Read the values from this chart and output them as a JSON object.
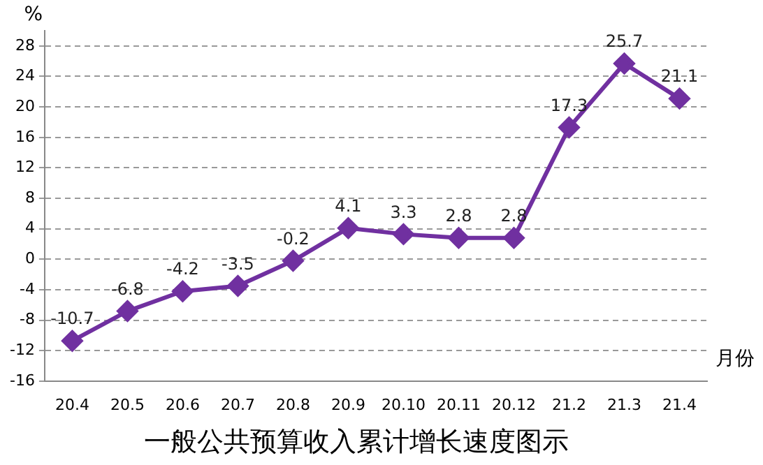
{
  "chart_data": {
    "type": "line",
    "title": "一般公共预算收入累计增长速度图示",
    "xlabel": "月份",
    "ylabel": "%",
    "categories": [
      "20.4",
      "20.5",
      "20.6",
      "20.7",
      "20.8",
      "20.9",
      "20.10",
      "20.11",
      "20.12",
      "21.2",
      "21.3",
      "21.4"
    ],
    "series": [
      {
        "color": "#7030a0",
        "values": [
          -10.7,
          -6.8,
          -4.2,
          -3.5,
          -0.2,
          4.1,
          3.3,
          2.8,
          2.8,
          17.3,
          25.7,
          21.1
        ]
      }
    ],
    "ylim": [
      -16,
      30
    ],
    "yticks": [
      -16,
      -12,
      -8,
      -4,
      0,
      4,
      8,
      12,
      16,
      20,
      24,
      28
    ],
    "grid": "y",
    "marker": "diamond",
    "line_style": "solid",
    "data_labels": true,
    "legend": false
  }
}
